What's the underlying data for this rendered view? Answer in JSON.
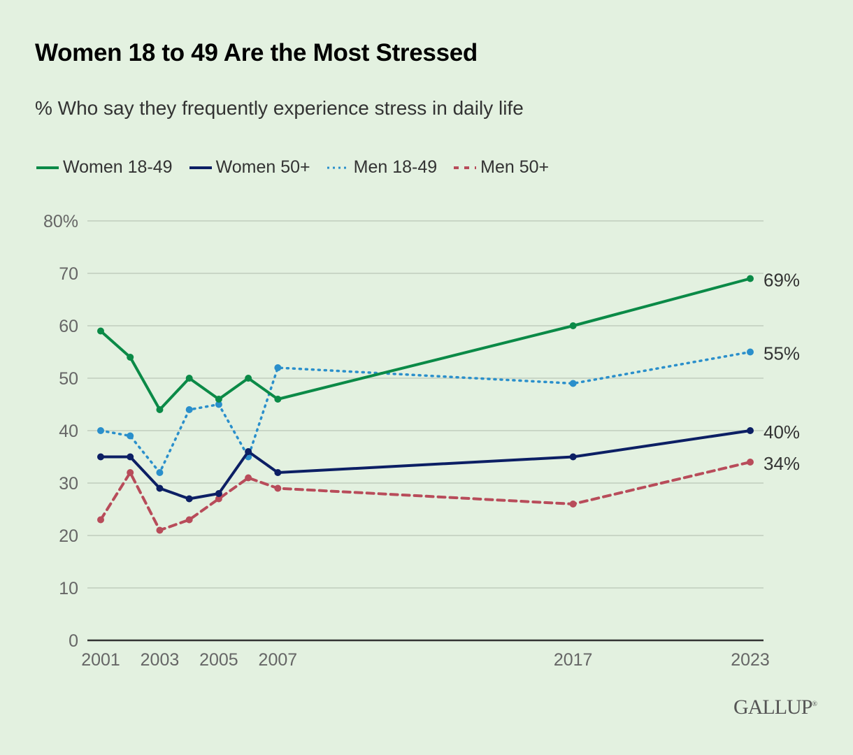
{
  "chart_data": {
    "type": "line",
    "title": "Women 18 to 49 Are the Most Stressed",
    "subtitle": "% Who say they frequently experience stress in daily life",
    "xlabel": "",
    "ylabel": "",
    "ylim": [
      0,
      80
    ],
    "yticks": [
      0,
      10,
      20,
      30,
      40,
      50,
      60,
      70,
      80
    ],
    "ytick_labels": [
      "0",
      "10",
      "20",
      "30",
      "40",
      "50",
      "60",
      "70",
      "80%"
    ],
    "xlim": [
      2001,
      2023
    ],
    "xticks": [
      2001,
      2003,
      2005,
      2007,
      2017,
      2023
    ],
    "xtick_labels": [
      "2001",
      "2003",
      "2005",
      "2007",
      "2017",
      "2023"
    ],
    "grid": true,
    "legend_position": "top-left",
    "x": [
      2001,
      2002,
      2003,
      2004,
      2005,
      2006,
      2007,
      2017,
      2023
    ],
    "series": [
      {
        "name": "Women 18-49",
        "color": "#0b8a47",
        "style": "solid",
        "values": [
          59,
          54,
          44,
          50,
          46,
          50,
          46,
          60,
          69
        ],
        "end_label": "69%"
      },
      {
        "name": "Women 50+",
        "color": "#0c1f64",
        "style": "solid",
        "values": [
          35,
          35,
          29,
          27,
          28,
          36,
          32,
          35,
          40
        ],
        "end_label": "40%"
      },
      {
        "name": "Men 18-49",
        "color": "#2a8fcb",
        "style": "dotted",
        "values": [
          40,
          39,
          32,
          44,
          45,
          35,
          52,
          49,
          55
        ],
        "end_label": "55%"
      },
      {
        "name": "Men 50+",
        "color": "#b84c5a",
        "style": "dashed",
        "values": [
          23,
          32,
          21,
          23,
          27,
          31,
          29,
          26,
          34
        ],
        "end_label": "34%"
      }
    ]
  },
  "brand": {
    "logo_text": "GALLUP",
    "registered": "®"
  }
}
